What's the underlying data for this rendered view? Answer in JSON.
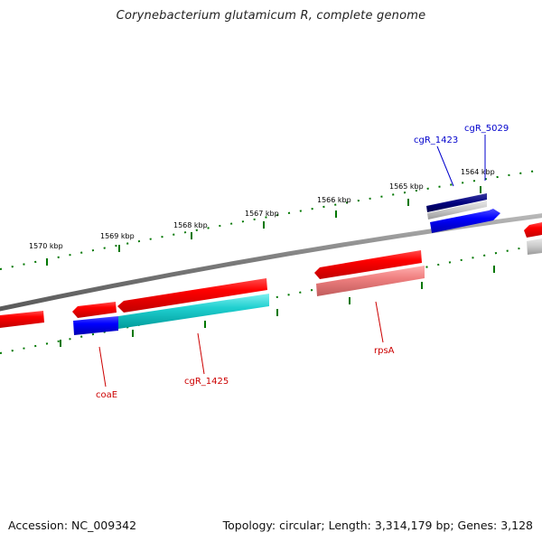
{
  "title": "Corynebacterium glutamicum R, complete genome",
  "footer": {
    "accession": "Accession: NC_009342",
    "summary": "Topology: circular; Length: 3,314,179 bp; Genes: 3,128"
  },
  "scale": {
    "upper_labels": [
      "1570 kbp",
      "1569 kbp",
      "1568 kbp",
      "1567 kbp",
      "1566 kbp",
      "1565 kbp",
      "1564 kbp"
    ]
  },
  "features": {
    "forward_labels": [
      "cgR_1423",
      "cgR_5029"
    ],
    "reverse_labels": [
      "coaE",
      "cgR_1425",
      "rpsA"
    ]
  },
  "colors": {
    "cds": "#ff0000",
    "cds_light": "#f08080",
    "gene_blue": "#0000ff",
    "gene_navy": "#000080",
    "gene_cyan": "#00cccc",
    "backbone": "#808080",
    "tick_green": "#007700",
    "label_red": "#cc0000",
    "label_blue": "#0000cc"
  }
}
